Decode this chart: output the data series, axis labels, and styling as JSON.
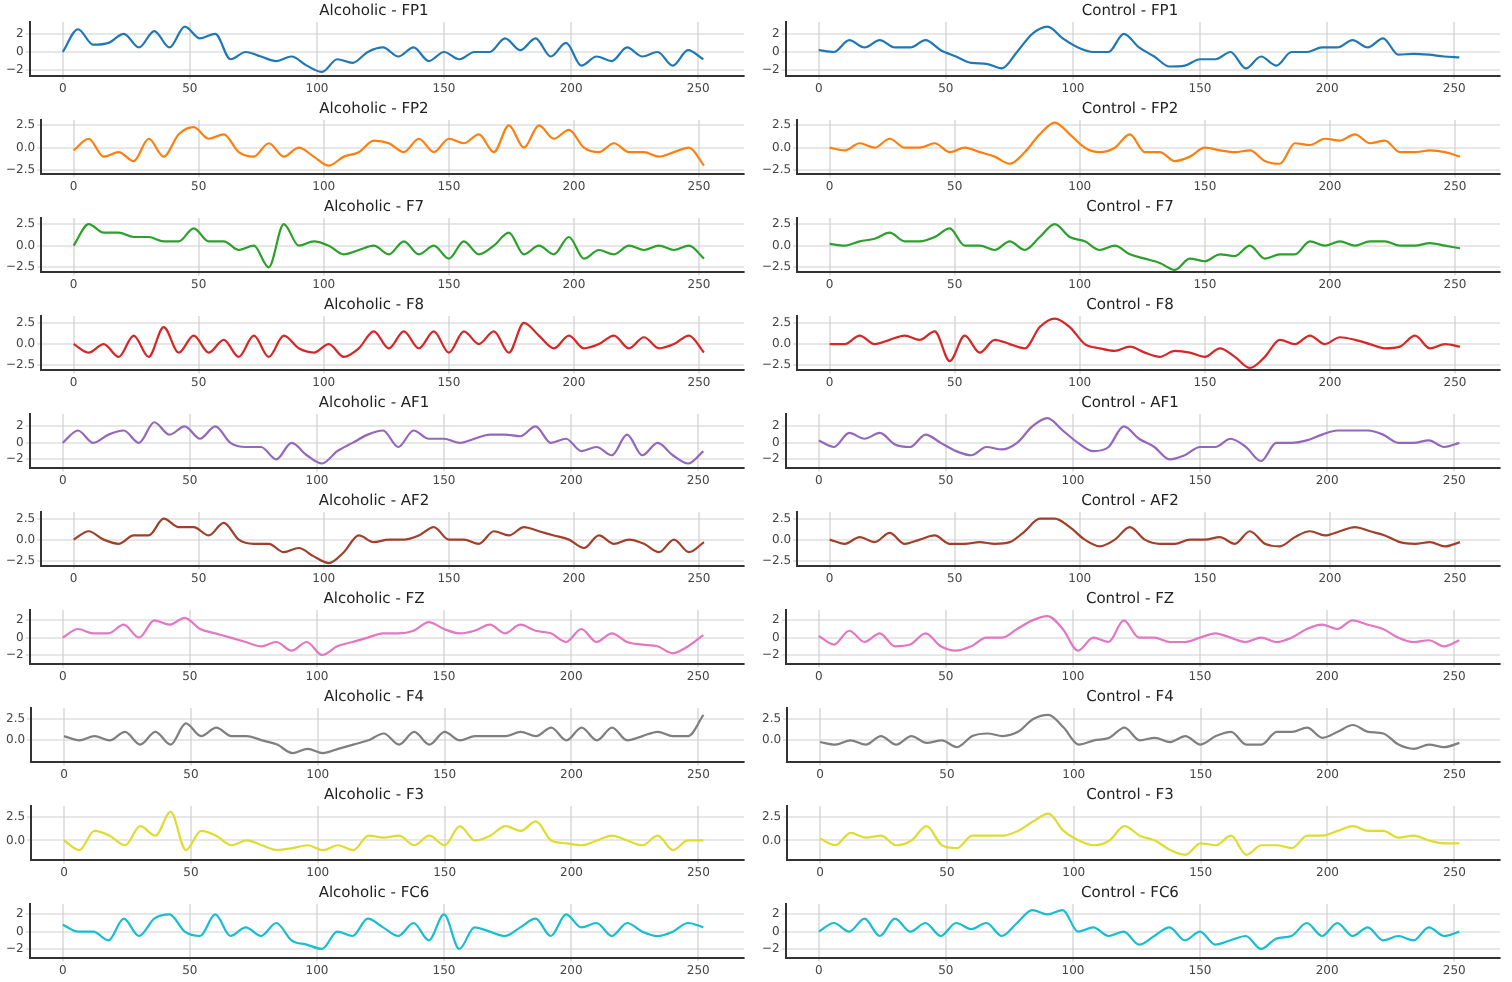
{
  "chart_data": [
    {
      "type": "line",
      "title": "Alcoholic - FP1",
      "x": [
        0,
        6,
        12,
        18,
        24,
        30,
        36,
        42,
        48,
        54,
        60,
        66,
        72,
        78,
        84,
        90,
        96,
        102,
        108,
        114,
        120,
        126,
        132,
        138,
        144,
        150,
        156,
        162,
        168,
        174,
        180,
        186,
        192,
        198,
        204,
        210,
        216,
        222,
        228,
        234,
        240,
        246,
        252
      ],
      "series": [
        {
          "color": "#1f77b4",
          "values": [
            0,
            2.5,
            0.8,
            1,
            2,
            0.5,
            2.3,
            0.5,
            2.8,
            1.5,
            2,
            -0.8,
            0,
            -0.5,
            -1,
            -0.5,
            -1.5,
            -2.2,
            -0.8,
            -1.2,
            0,
            0.5,
            -0.5,
            0.5,
            -1,
            0,
            -0.8,
            0,
            0,
            1.5,
            0.2,
            1.5,
            -0.5,
            1,
            -1.5,
            -0.5,
            -1,
            0.5,
            -0.5,
            0,
            -1.5,
            0.2,
            -0.8
          ]
        }
      ],
      "xlim": [
        -13,
        268
      ],
      "xticks": [
        0,
        50,
        100,
        150,
        200,
        250
      ],
      "ylim": [
        -2.6,
        3.3
      ],
      "yticks": [
        {
          "value": -2,
          "label": "−2"
        },
        0,
        2
      ],
      "grid": true
    },
    {
      "type": "line",
      "title": "Control - FP1",
      "x": [
        0,
        6,
        12,
        18,
        24,
        30,
        36,
        42,
        48,
        54,
        60,
        66,
        72,
        78,
        84,
        90,
        96,
        102,
        108,
        114,
        120,
        126,
        132,
        138,
        144,
        150,
        156,
        162,
        168,
        174,
        180,
        186,
        192,
        198,
        204,
        210,
        216,
        222,
        228,
        234,
        240,
        246,
        252
      ],
      "series": [
        {
          "color": "#1f77b4",
          "values": [
            0.2,
            0,
            1.3,
            0.5,
            1.3,
            0.5,
            0.5,
            1.3,
            0.2,
            -0.5,
            -1.2,
            -1.3,
            -1.8,
            0,
            2,
            2.8,
            1.5,
            0.5,
            0,
            0,
            2,
            0.5,
            -0.5,
            -1.6,
            -1.5,
            -0.8,
            -0.8,
            0,
            -1.8,
            -0.5,
            -1.5,
            0,
            0,
            0.5,
            0.5,
            1.3,
            0.5,
            1.5,
            -0.3,
            -0.2,
            -0.3,
            -0.5,
            -0.6
          ]
        }
      ],
      "xlim": [
        -13,
        268
      ],
      "xticks": [
        0,
        50,
        100,
        150,
        200,
        250
      ],
      "ylim": [
        -2.6,
        3.3
      ],
      "yticks": [
        {
          "value": -2,
          "label": "−2"
        },
        0,
        2
      ],
      "grid": true
    },
    {
      "type": "line",
      "title": "Alcoholic - FP2",
      "x": [
        0,
        6,
        12,
        18,
        24,
        30,
        36,
        42,
        48,
        54,
        60,
        66,
        72,
        78,
        84,
        90,
        96,
        102,
        108,
        114,
        120,
        126,
        132,
        138,
        144,
        150,
        156,
        162,
        168,
        174,
        180,
        186,
        192,
        198,
        204,
        210,
        216,
        222,
        228,
        234,
        240,
        246,
        252
      ],
      "series": [
        {
          "color": "#ff7f0e",
          "values": [
            -0.3,
            1,
            -1,
            -0.5,
            -1.5,
            1,
            -1,
            1.5,
            2.3,
            1,
            1.5,
            -0.5,
            -1,
            0.5,
            -1,
            0,
            -1,
            -2,
            -1,
            -0.5,
            0.8,
            0.5,
            -0.5,
            1,
            -0.5,
            1,
            0.5,
            1.5,
            -0.5,
            2.5,
            0,
            2.5,
            1,
            2,
            0,
            -0.5,
            0.5,
            -0.5,
            -0.5,
            -1,
            -0.5,
            0,
            -2
          ]
        }
      ],
      "xlim": [
        -13,
        268
      ],
      "xticks": [
        0,
        50,
        100,
        150,
        200,
        250
      ],
      "ylim": [
        -2.9,
        3.1
      ],
      "yticks": [
        {
          "value": -2.5,
          "label": "−2.5"
        },
        {
          "value": 0,
          "label": "0.0"
        },
        2.5
      ],
      "grid": true
    },
    {
      "type": "line",
      "title": "Control - FP2",
      "x": [
        0,
        6,
        12,
        18,
        24,
        30,
        36,
        42,
        48,
        54,
        60,
        66,
        72,
        78,
        84,
        90,
        96,
        102,
        108,
        114,
        120,
        126,
        132,
        138,
        144,
        150,
        156,
        162,
        168,
        174,
        180,
        186,
        192,
        198,
        204,
        210,
        216,
        222,
        228,
        234,
        240,
        246,
        252
      ],
      "series": [
        {
          "color": "#ff7f0e",
          "values": [
            0,
            -0.3,
            0.5,
            0,
            1,
            0,
            0,
            0.5,
            -0.5,
            0,
            -0.5,
            -1,
            -1.8,
            -0.5,
            1.5,
            2.8,
            1.5,
            0,
            -0.5,
            0,
            1.5,
            -0.5,
            -0.5,
            -1.5,
            -1,
            0,
            -0.3,
            -0.5,
            -0.3,
            -1.5,
            -1.8,
            0.5,
            0.3,
            1,
            0.8,
            1.5,
            0.5,
            0.8,
            -0.5,
            -0.5,
            -0.3,
            -0.5,
            -1
          ]
        }
      ],
      "xlim": [
        -13,
        268
      ],
      "xticks": [
        0,
        50,
        100,
        150,
        200,
        250
      ],
      "ylim": [
        -2.9,
        3.1
      ],
      "yticks": [
        {
          "value": -2.5,
          "label": "−2.5"
        },
        {
          "value": 0,
          "label": "0.0"
        },
        2.5
      ],
      "grid": true
    },
    {
      "type": "line",
      "title": "Alcoholic - F7",
      "x": [
        0,
        6,
        12,
        18,
        24,
        30,
        36,
        42,
        48,
        54,
        60,
        66,
        72,
        78,
        84,
        90,
        96,
        102,
        108,
        114,
        120,
        126,
        132,
        138,
        144,
        150,
        156,
        162,
        168,
        174,
        180,
        186,
        192,
        198,
        204,
        210,
        216,
        222,
        228,
        234,
        240,
        246,
        252
      ],
      "series": [
        {
          "color": "#2ca02c",
          "values": [
            0,
            2.5,
            1.5,
            1.5,
            1,
            1,
            0.5,
            0.5,
            2,
            0.5,
            0.5,
            -0.5,
            0,
            -2.5,
            2.5,
            0,
            0.5,
            0,
            -1,
            -0.5,
            0,
            -1,
            0.5,
            -1,
            0,
            -1.5,
            0.5,
            -1,
            0,
            1.5,
            -1,
            0,
            -1,
            1,
            -1.5,
            -0.5,
            -1,
            0,
            -0.5,
            0,
            -0.5,
            0,
            -1.5
          ]
        }
      ],
      "xlim": [
        -13,
        268
      ],
      "xticks": [
        0,
        50,
        100,
        150,
        200,
        250
      ],
      "ylim": [
        -3,
        3.2
      ],
      "yticks": [
        {
          "value": -2.5,
          "label": "−2.5"
        },
        {
          "value": 0,
          "label": "0.0"
        },
        2.5
      ],
      "grid": true
    },
    {
      "type": "line",
      "title": "Control - F7",
      "x": [
        0,
        6,
        12,
        18,
        24,
        30,
        36,
        42,
        48,
        54,
        60,
        66,
        72,
        78,
        84,
        90,
        96,
        102,
        108,
        114,
        120,
        126,
        132,
        138,
        144,
        150,
        156,
        162,
        168,
        174,
        180,
        186,
        192,
        198,
        204,
        210,
        216,
        222,
        228,
        234,
        240,
        246,
        252
      ],
      "series": [
        {
          "color": "#2ca02c",
          "values": [
            0.2,
            0,
            0.5,
            0.8,
            1.5,
            0.5,
            0.5,
            1,
            2,
            0,
            0,
            -0.5,
            0.5,
            -0.5,
            1,
            2.5,
            1,
            0.5,
            -0.5,
            0,
            -1,
            -1.5,
            -2,
            -2.8,
            -1.5,
            -1.8,
            -1,
            -1.2,
            0,
            -1.5,
            -1,
            -1,
            0.5,
            0,
            0.5,
            0,
            0.5,
            0.5,
            0,
            0,
            0.3,
            0,
            -0.3
          ]
        }
      ],
      "xlim": [
        -13,
        268
      ],
      "xticks": [
        0,
        50,
        100,
        150,
        200,
        250
      ],
      "ylim": [
        -3,
        3.2
      ],
      "yticks": [
        {
          "value": -2.5,
          "label": "−2.5"
        },
        {
          "value": 0,
          "label": "0.0"
        },
        2.5
      ],
      "grid": true
    },
    {
      "type": "line",
      "title": "Alcoholic - F8",
      "x": [
        0,
        6,
        12,
        18,
        24,
        30,
        36,
        42,
        48,
        54,
        60,
        66,
        72,
        78,
        84,
        90,
        96,
        102,
        108,
        114,
        120,
        126,
        132,
        138,
        144,
        150,
        156,
        162,
        168,
        174,
        180,
        186,
        192,
        198,
        204,
        210,
        216,
        222,
        228,
        234,
        240,
        246,
        252
      ],
      "series": [
        {
          "color": "#d62728",
          "values": [
            0,
            -1,
            0,
            -1.5,
            1,
            -1.5,
            2,
            -1,
            1,
            -1,
            0.5,
            -1.5,
            1,
            -1.5,
            1,
            -0.5,
            -1,
            0,
            -1.5,
            -0.5,
            1.5,
            -0.5,
            1.5,
            -0.5,
            1.5,
            -1,
            1.5,
            0,
            1.5,
            -1,
            2.5,
            1,
            -0.5,
            1,
            -0.5,
            0,
            1,
            -0.5,
            0.8,
            -0.5,
            0,
            1,
            -1
          ]
        }
      ],
      "xlim": [
        -13,
        268
      ],
      "xticks": [
        0,
        50,
        100,
        150,
        200,
        250
      ],
      "ylim": [
        -3,
        3.3
      ],
      "yticks": [
        {
          "value": -2.5,
          "label": "−2.5"
        },
        {
          "value": 0,
          "label": "0.0"
        },
        2.5
      ],
      "grid": true
    },
    {
      "type": "line",
      "title": "Control - F8",
      "x": [
        0,
        6,
        12,
        18,
        24,
        30,
        36,
        42,
        48,
        54,
        60,
        66,
        72,
        78,
        84,
        90,
        96,
        102,
        108,
        114,
        120,
        126,
        132,
        138,
        144,
        150,
        156,
        162,
        168,
        174,
        180,
        186,
        192,
        198,
        204,
        210,
        216,
        222,
        228,
        234,
        240,
        246,
        252
      ],
      "series": [
        {
          "color": "#d62728",
          "values": [
            0,
            0,
            1,
            0,
            0.5,
            1,
            0.5,
            1.5,
            -2,
            1,
            -1,
            0.5,
            0,
            -0.5,
            2,
            3,
            2,
            0,
            -0.5,
            -0.8,
            -0.3,
            -1,
            -1.5,
            -0.8,
            -1,
            -1.5,
            -0.5,
            -1.5,
            -2.8,
            -1.5,
            0.5,
            0,
            1,
            0,
            0.8,
            0.5,
            0,
            -0.5,
            -0.3,
            1,
            -0.5,
            0,
            -0.3
          ]
        }
      ],
      "xlim": [
        -13,
        268
      ],
      "xticks": [
        0,
        50,
        100,
        150,
        200,
        250
      ],
      "ylim": [
        -3,
        3.3
      ],
      "yticks": [
        {
          "value": -2.5,
          "label": "−2.5"
        },
        {
          "value": 0,
          "label": "0.0"
        },
        2.5
      ],
      "grid": true
    },
    {
      "type": "line",
      "title": "Alcoholic - AF1",
      "x": [
        0,
        6,
        12,
        18,
        24,
        30,
        36,
        42,
        48,
        54,
        60,
        66,
        72,
        78,
        84,
        90,
        96,
        102,
        108,
        114,
        120,
        126,
        132,
        138,
        144,
        150,
        156,
        162,
        168,
        174,
        180,
        186,
        192,
        198,
        204,
        210,
        216,
        222,
        228,
        234,
        240,
        246,
        252
      ],
      "series": [
        {
          "color": "#9467bd",
          "values": [
            0,
            1.5,
            0,
            1,
            1.5,
            0,
            2.5,
            1,
            2,
            0.5,
            2,
            0,
            -0.5,
            -0.5,
            -2,
            0,
            -1.5,
            -2.5,
            -1,
            0,
            1,
            1.5,
            -0.5,
            1.5,
            0.5,
            0.5,
            0,
            0.5,
            1,
            1,
            0.8,
            2,
            0,
            0.5,
            -1,
            -0.5,
            -1.5,
            1,
            -1.5,
            0,
            -1.5,
            -2.5,
            -1
          ]
        }
      ],
      "xlim": [
        -13,
        268
      ],
      "xticks": [
        0,
        50,
        100,
        150,
        200,
        250
      ],
      "ylim": [
        -3,
        3.5
      ],
      "yticks": [
        {
          "value": -2,
          "label": "−2"
        },
        0,
        2
      ],
      "grid": true
    },
    {
      "type": "line",
      "title": "Control - AF1",
      "x": [
        0,
        6,
        12,
        18,
        24,
        30,
        36,
        42,
        48,
        54,
        60,
        66,
        72,
        78,
        84,
        90,
        96,
        102,
        108,
        114,
        120,
        126,
        132,
        138,
        144,
        150,
        156,
        162,
        168,
        174,
        180,
        186,
        192,
        198,
        204,
        210,
        216,
        222,
        228,
        234,
        240,
        246,
        252
      ],
      "series": [
        {
          "color": "#9467bd",
          "values": [
            0.3,
            -0.5,
            1.2,
            0.5,
            1.2,
            -0.2,
            -0.5,
            1,
            0,
            -1,
            -1.5,
            -0.5,
            -0.8,
            0,
            2,
            3,
            1.5,
            0,
            -1,
            -0.5,
            2,
            0.5,
            -0.5,
            -2,
            -1.5,
            -0.5,
            -0.5,
            0.5,
            -0.5,
            -2.2,
            0,
            0,
            0.3,
            1,
            1.5,
            1.5,
            1.5,
            1,
            0,
            0,
            0.3,
            -0.5,
            0
          ]
        }
      ],
      "xlim": [
        -13,
        268
      ],
      "xticks": [
        0,
        50,
        100,
        150,
        200,
        250
      ],
      "ylim": [
        -3,
        3.5
      ],
      "yticks": [
        {
          "value": -2,
          "label": "−2"
        },
        0,
        2
      ],
      "grid": true
    },
    {
      "type": "line",
      "title": "Alcoholic - AF2",
      "x": [
        0,
        6,
        12,
        18,
        24,
        30,
        36,
        42,
        48,
        54,
        60,
        66,
        72,
        78,
        84,
        90,
        96,
        102,
        108,
        114,
        120,
        126,
        132,
        138,
        144,
        150,
        156,
        162,
        168,
        174,
        180,
        186,
        192,
        198,
        204,
        210,
        216,
        222,
        228,
        234,
        240,
        246,
        252
      ],
      "series": [
        {
          "color": "#a0402a",
          "values": [
            0,
            1,
            0,
            -0.5,
            0.5,
            0.5,
            2.5,
            1.5,
            1.5,
            0.5,
            2,
            0,
            -0.5,
            -0.5,
            -1.5,
            -1,
            -2,
            -2.8,
            -1.5,
            0.5,
            -0.3,
            0,
            0,
            0.5,
            1.5,
            0,
            0,
            -0.5,
            1,
            0.5,
            1.5,
            1,
            0.5,
            0,
            -1,
            0.5,
            -0.5,
            0,
            -0.5,
            -1.5,
            0,
            -1.5,
            -0.3
          ]
        }
      ],
      "xlim": [
        -13,
        268
      ],
      "xticks": [
        0,
        50,
        100,
        150,
        200,
        250
      ],
      "ylim": [
        -3.1,
        3.3
      ],
      "yticks": [
        {
          "value": -2.5,
          "label": "−2.5"
        },
        {
          "value": 0,
          "label": "0.0"
        },
        2.5
      ],
      "grid": true
    },
    {
      "type": "line",
      "title": "Control - AF2",
      "x": [
        0,
        6,
        12,
        18,
        24,
        30,
        36,
        42,
        48,
        54,
        60,
        66,
        72,
        78,
        84,
        90,
        96,
        102,
        108,
        114,
        120,
        126,
        132,
        138,
        144,
        150,
        156,
        162,
        168,
        174,
        180,
        186,
        192,
        198,
        204,
        210,
        216,
        222,
        228,
        234,
        240,
        246,
        252
      ],
      "series": [
        {
          "color": "#a0402a",
          "values": [
            0,
            -0.5,
            0.3,
            -0.3,
            0.8,
            -0.5,
            0,
            0.5,
            -0.5,
            -0.5,
            -0.3,
            -0.5,
            -0.3,
            1,
            2.5,
            2.5,
            1.5,
            0,
            -0.8,
            0,
            1.5,
            0,
            -0.5,
            -0.5,
            0,
            0,
            0.3,
            -0.5,
            1,
            -0.5,
            -0.8,
            0.3,
            1,
            0.5,
            1,
            1.5,
            1,
            0.5,
            -0.3,
            -0.5,
            -0.3,
            -0.8,
            -0.3
          ]
        }
      ],
      "xlim": [
        -13,
        268
      ],
      "xticks": [
        0,
        50,
        100,
        150,
        200,
        250
      ],
      "ylim": [
        -3.1,
        3.3
      ],
      "yticks": [
        {
          "value": -2.5,
          "label": "−2.5"
        },
        {
          "value": 0,
          "label": "0.0"
        },
        2.5
      ],
      "grid": true
    },
    {
      "type": "line",
      "title": "Alcoholic - FZ",
      "x": [
        0,
        6,
        12,
        18,
        24,
        30,
        36,
        42,
        48,
        54,
        60,
        66,
        72,
        78,
        84,
        90,
        96,
        102,
        108,
        114,
        120,
        126,
        132,
        138,
        144,
        150,
        156,
        162,
        168,
        174,
        180,
        186,
        192,
        198,
        204,
        210,
        216,
        222,
        228,
        234,
        240,
        246,
        252
      ],
      "series": [
        {
          "color": "#e377c2",
          "values": [
            0,
            1,
            0.5,
            0.5,
            1.5,
            0,
            2,
            1.5,
            2.3,
            1,
            0.5,
            0,
            -0.5,
            -1,
            -0.5,
            -1.5,
            -0.5,
            -2,
            -1,
            -0.5,
            0,
            0.5,
            0.5,
            0.8,
            1.8,
            1,
            0.5,
            0.8,
            1.5,
            0.5,
            1.5,
            0.8,
            0.5,
            -0.5,
            1,
            -0.5,
            0.5,
            -0.5,
            -0.8,
            -1,
            -1.8,
            -1,
            0.3
          ]
        }
      ],
      "xlim": [
        -13,
        268
      ],
      "xticks": [
        0,
        50,
        100,
        150,
        200,
        250
      ],
      "ylim": [
        -3,
        3.2
      ],
      "yticks": [
        {
          "value": -2,
          "label": "−2"
        },
        0,
        2
      ],
      "grid": true
    },
    {
      "type": "line",
      "title": "Control - FZ",
      "x": [
        0,
        6,
        12,
        18,
        24,
        30,
        36,
        42,
        48,
        54,
        60,
        66,
        72,
        78,
        84,
        90,
        96,
        102,
        108,
        114,
        120,
        126,
        132,
        138,
        144,
        150,
        156,
        162,
        168,
        174,
        180,
        186,
        192,
        198,
        204,
        210,
        216,
        222,
        228,
        234,
        240,
        246,
        252
      ],
      "series": [
        {
          "color": "#e377c2",
          "values": [
            0.2,
            -0.8,
            0.8,
            -0.5,
            0.5,
            -1,
            -0.8,
            0.5,
            -1,
            -1.5,
            -1,
            0,
            0,
            1,
            2,
            2.5,
            1,
            -1.5,
            0,
            -0.5,
            2,
            0,
            0,
            -0.5,
            -0.5,
            0,
            0.5,
            0,
            -0.5,
            0,
            -0.5,
            0,
            1,
            1.5,
            1,
            2,
            1.5,
            1,
            0,
            -0.5,
            -0.3,
            -1,
            -0.3
          ]
        }
      ],
      "xlim": [
        -13,
        268
      ],
      "xticks": [
        0,
        50,
        100,
        150,
        200,
        250
      ],
      "ylim": [
        -3,
        3.2
      ],
      "yticks": [
        {
          "value": -2,
          "label": "−2"
        },
        0,
        2
      ],
      "grid": true
    },
    {
      "type": "line",
      "title": "Alcoholic - F4",
      "x": [
        0,
        6,
        12,
        18,
        24,
        30,
        36,
        42,
        48,
        54,
        60,
        66,
        72,
        78,
        84,
        90,
        96,
        102,
        108,
        114,
        120,
        126,
        132,
        138,
        144,
        150,
        156,
        162,
        168,
        174,
        180,
        186,
        192,
        198,
        204,
        210,
        216,
        222,
        228,
        234,
        240,
        246,
        252
      ],
      "series": [
        {
          "color": "#7f7f7f",
          "values": [
            0.5,
            0,
            0.5,
            0,
            1,
            -0.5,
            1,
            -0.5,
            2,
            0.5,
            1.5,
            0.5,
            0.5,
            0,
            -0.5,
            -1.5,
            -1,
            -1.5,
            -1,
            -0.5,
            0,
            0.8,
            -0.5,
            1,
            -0.5,
            1,
            0,
            0.5,
            0.5,
            0.5,
            1,
            0.5,
            1.5,
            0,
            1.5,
            0,
            1.5,
            0,
            0.5,
            1,
            0.5,
            0.5,
            3
          ]
        }
      ],
      "xlim": [
        -13,
        268
      ],
      "xticks": [
        0,
        50,
        100,
        150,
        200,
        250
      ],
      "ylim": [
        -2.5,
        3.8
      ],
      "yticks": [
        {
          "value": 0,
          "label": "0.0"
        },
        2.5
      ],
      "grid": true
    },
    {
      "type": "line",
      "title": "Control - F4",
      "x": [
        0,
        6,
        12,
        18,
        24,
        30,
        36,
        42,
        48,
        54,
        60,
        66,
        72,
        78,
        84,
        90,
        96,
        102,
        108,
        114,
        120,
        126,
        132,
        138,
        144,
        150,
        156,
        162,
        168,
        174,
        180,
        186,
        192,
        198,
        204,
        210,
        216,
        222,
        228,
        234,
        240,
        246,
        252
      ],
      "series": [
        {
          "color": "#7f7f7f",
          "values": [
            -0.2,
            -0.5,
            0,
            -0.5,
            0.5,
            -0.5,
            0.5,
            -0.3,
            0,
            -0.8,
            0.5,
            0.8,
            0.5,
            1,
            2.5,
            3,
            1.5,
            -0.5,
            0,
            0.3,
            1.5,
            0,
            0.3,
            -0.2,
            0.5,
            -0.5,
            0.5,
            1,
            -0.5,
            -0.5,
            1,
            1,
            1.5,
            0.3,
            1,
            1.8,
            1,
            0.8,
            -0.5,
            -1,
            -0.5,
            -0.8,
            -0.3
          ]
        }
      ],
      "xlim": [
        -13,
        268
      ],
      "xticks": [
        0,
        50,
        100,
        150,
        200,
        250
      ],
      "ylim": [
        -2.5,
        3.8
      ],
      "yticks": [
        {
          "value": 0,
          "label": "0.0"
        },
        2.5
      ],
      "grid": true
    },
    {
      "type": "line",
      "title": "Alcoholic - F3",
      "x": [
        0,
        6,
        12,
        18,
        24,
        30,
        36,
        42,
        48,
        54,
        60,
        66,
        72,
        78,
        84,
        90,
        96,
        102,
        108,
        114,
        120,
        126,
        132,
        138,
        144,
        150,
        156,
        162,
        168,
        174,
        180,
        186,
        192,
        198,
        204,
        210,
        216,
        222,
        228,
        234,
        240,
        246,
        252
      ],
      "series": [
        {
          "color": "#dddd30",
          "values": [
            0,
            -1,
            1,
            0.5,
            -0.5,
            1.5,
            0.5,
            3,
            -1,
            1,
            0.5,
            -0.5,
            0,
            -0.5,
            -1,
            -0.8,
            -0.5,
            -1,
            -0.5,
            -1,
            0.5,
            0.3,
            0.5,
            -0.5,
            0.5,
            -0.5,
            1.5,
            0,
            0.5,
            1.5,
            1,
            2,
            0,
            -0.3,
            -0.5,
            0,
            0.5,
            0,
            -0.5,
            0.5,
            -1,
            0,
            0
          ]
        }
      ],
      "xlim": [
        -13,
        268
      ],
      "xticks": [
        0,
        50,
        100,
        150,
        200,
        250
      ],
      "ylim": [
        -2,
        3.6
      ],
      "yticks": [
        {
          "value": 0,
          "label": "0.0"
        },
        2.5
      ],
      "grid": true
    },
    {
      "type": "line",
      "title": "Control - F3",
      "x": [
        0,
        6,
        12,
        18,
        24,
        30,
        36,
        42,
        48,
        54,
        60,
        66,
        72,
        78,
        84,
        90,
        96,
        102,
        108,
        114,
        120,
        126,
        132,
        138,
        144,
        150,
        156,
        162,
        168,
        174,
        180,
        186,
        192,
        198,
        204,
        210,
        216,
        222,
        228,
        234,
        240,
        246,
        252
      ],
      "series": [
        {
          "color": "#dddd30",
          "values": [
            0.2,
            -0.5,
            0.8,
            0.3,
            0.5,
            -0.5,
            0,
            1.5,
            -0.5,
            -0.8,
            0.5,
            0.5,
            0.5,
            1,
            2,
            2.8,
            1,
            0,
            -0.5,
            0,
            1.5,
            0.5,
            0,
            -1,
            -1.5,
            -0.3,
            -0.5,
            0.5,
            -1.5,
            -0.5,
            -0.5,
            -0.8,
            0.5,
            0.5,
            1,
            1.5,
            1,
            1,
            0.3,
            0.5,
            0,
            -0.3,
            -0.3
          ]
        }
      ],
      "xlim": [
        -13,
        268
      ],
      "xticks": [
        0,
        50,
        100,
        150,
        200,
        250
      ],
      "ylim": [
        -2,
        3.6
      ],
      "yticks": [
        {
          "value": 0,
          "label": "0.0"
        },
        2.5
      ],
      "grid": true
    },
    {
      "type": "line",
      "title": "Alcoholic - FC6",
      "x": [
        0,
        6,
        12,
        18,
        24,
        30,
        36,
        42,
        48,
        54,
        60,
        66,
        72,
        78,
        84,
        90,
        96,
        102,
        108,
        114,
        120,
        126,
        132,
        138,
        144,
        150,
        156,
        162,
        168,
        174,
        180,
        186,
        192,
        198,
        204,
        210,
        216,
        222,
        228,
        234,
        240,
        246,
        252
      ],
      "series": [
        {
          "color": "#17becf",
          "values": [
            0.8,
            0,
            0,
            -1,
            1.5,
            -0.5,
            1.5,
            2,
            0,
            -0.5,
            2,
            -0.5,
            0.5,
            -0.5,
            1,
            -1,
            -1.5,
            -2,
            0,
            -0.5,
            1.5,
            0.5,
            -0.5,
            1,
            -1,
            2,
            -2,
            0.5,
            0,
            -0.5,
            0.5,
            1.5,
            -0.5,
            2,
            0.5,
            1,
            -0.5,
            1,
            0,
            -0.5,
            0,
            1,
            0.5
          ]
        }
      ],
      "xlim": [
        -13,
        268
      ],
      "xticks": [
        0,
        50,
        100,
        150,
        200,
        250
      ],
      "ylim": [
        -3,
        3.2
      ],
      "yticks": [
        {
          "value": -2,
          "label": "−2"
        },
        0,
        2
      ],
      "grid": true
    },
    {
      "type": "line",
      "title": "Control - FC6",
      "x": [
        0,
        6,
        12,
        18,
        24,
        30,
        36,
        42,
        48,
        54,
        60,
        66,
        72,
        78,
        84,
        90,
        96,
        102,
        108,
        114,
        120,
        126,
        132,
        138,
        144,
        150,
        156,
        162,
        168,
        174,
        180,
        186,
        192,
        198,
        204,
        210,
        216,
        222,
        228,
        234,
        240,
        246,
        252
      ],
      "series": [
        {
          "color": "#17becf",
          "values": [
            0,
            1,
            0,
            1.5,
            -0.5,
            1.5,
            0,
            1,
            -0.5,
            1,
            0.3,
            1,
            -0.5,
            1,
            2.5,
            2,
            2.5,
            0,
            0.5,
            -0.5,
            0,
            -1.5,
            -0.5,
            0.5,
            -1,
            0,
            -1.5,
            -1,
            -0.5,
            -2,
            -0.8,
            -0.5,
            1,
            -0.5,
            1,
            -0.5,
            0.5,
            -1,
            -0.5,
            -1,
            0.5,
            -0.5,
            0
          ]
        }
      ],
      "xlim": [
        -13,
        268
      ],
      "xticks": [
        0,
        50,
        100,
        150,
        200,
        250
      ],
      "ylim": [
        -3,
        3.2
      ],
      "yticks": [
        {
          "value": -2,
          "label": "−2"
        },
        0,
        2
      ],
      "grid": true
    }
  ]
}
